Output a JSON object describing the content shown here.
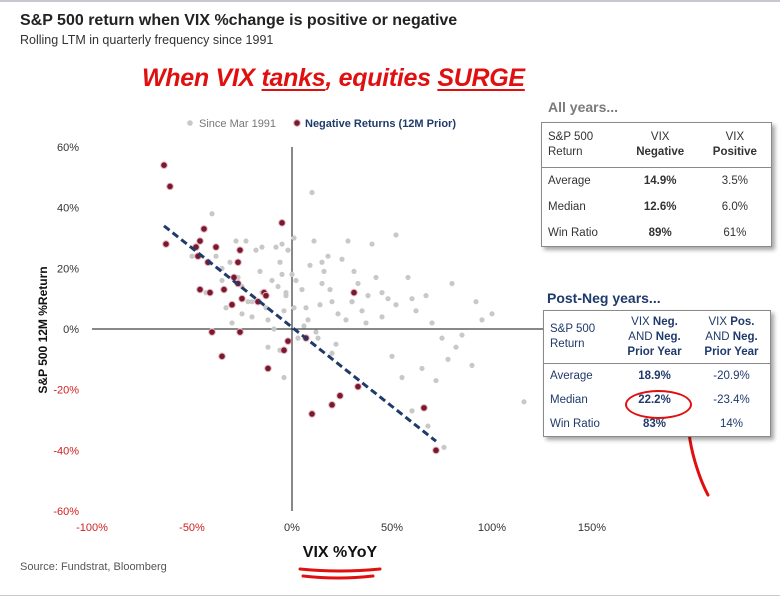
{
  "header": {
    "title": "S&P 500 return when VIX %change is positive or negative",
    "subtitle": "Rolling LTM in quarterly frequency since 1991",
    "headline_parts": [
      "When VIX ",
      "tanks",
      ", equities ",
      "SURGE"
    ]
  },
  "source": "Source: Fundstrat, Bloomberg",
  "colors": {
    "accent_red": "#e01010",
    "navy": "#1f3a6b",
    "gray_points": "#c8c8c8",
    "maroon_points": "#7a1830",
    "negative_tick_red": "#d02020"
  },
  "chart_data": {
    "type": "scatter",
    "xlabel": "VIX %YoY",
    "ylabel": "S&P 500 12M %Return",
    "xlim": [
      -100,
      150
    ],
    "ylim": [
      -60,
      60
    ],
    "x_ticks": [
      "-100%",
      "-50%",
      "0%",
      "50%",
      "100%",
      "150%"
    ],
    "y_ticks": [
      "60%",
      "40%",
      "20%",
      "0%",
      "-20%",
      "-40%",
      "-60%"
    ],
    "grid": false,
    "legend": "top-center",
    "series": [
      {
        "name": "Since Mar 1991",
        "color": "#c8c8c8",
        "points": [
          [
            -40,
            38
          ],
          [
            -50,
            24
          ],
          [
            -43,
            12
          ],
          [
            -38,
            24
          ],
          [
            -35,
            16
          ],
          [
            -33,
            7
          ],
          [
            -31,
            22
          ],
          [
            -27,
            17
          ],
          [
            -25,
            14
          ],
          [
            -23,
            29
          ],
          [
            -22,
            9
          ],
          [
            -20,
            4
          ],
          [
            -18,
            26
          ],
          [
            -16,
            19
          ],
          [
            -15,
            12
          ],
          [
            -13,
            7
          ],
          [
            -12,
            3
          ],
          [
            -10,
            16
          ],
          [
            -8,
            27
          ],
          [
            -7,
            14
          ],
          [
            -6,
            22
          ],
          [
            -5,
            28
          ],
          [
            -4,
            6
          ],
          [
            -3,
            11
          ],
          [
            -2,
            26
          ],
          [
            0,
            18
          ],
          [
            1,
            7
          ],
          [
            2,
            16
          ],
          [
            5,
            13
          ],
          [
            6,
            1
          ],
          [
            7,
            7
          ],
          [
            8,
            3
          ],
          [
            9,
            21
          ],
          [
            10,
            45
          ],
          [
            11,
            29
          ],
          [
            12,
            -1
          ],
          [
            13,
            -3
          ],
          [
            14,
            8
          ],
          [
            15,
            15
          ],
          [
            16,
            19
          ],
          [
            18,
            24
          ],
          [
            19,
            13
          ],
          [
            20,
            9
          ],
          [
            22,
            -5
          ],
          [
            23,
            5
          ],
          [
            25,
            23
          ],
          [
            27,
            3
          ],
          [
            28,
            29
          ],
          [
            30,
            9
          ],
          [
            31,
            19
          ],
          [
            33,
            15
          ],
          [
            35,
            6
          ],
          [
            37,
            2
          ],
          [
            40,
            28
          ],
          [
            42,
            17
          ],
          [
            45,
            12
          ],
          [
            48,
            10
          ],
          [
            50,
            -9
          ],
          [
            52,
            8
          ],
          [
            55,
            -16
          ],
          [
            58,
            17
          ],
          [
            60,
            10
          ],
          [
            62,
            6
          ],
          [
            65,
            -13
          ],
          [
            67,
            11
          ],
          [
            70,
            2
          ],
          [
            72,
            -17
          ],
          [
            75,
            -3
          ],
          [
            78,
            -10
          ],
          [
            80,
            15
          ],
          [
            82,
            -6
          ],
          [
            85,
            -2
          ],
          [
            90,
            -12
          ],
          [
            92,
            9
          ],
          [
            95,
            3
          ],
          [
            100,
            5
          ],
          [
            -9,
            0
          ],
          [
            -4,
            -16
          ],
          [
            -12,
            -6
          ],
          [
            -6,
            -7
          ],
          [
            3,
            -3
          ],
          [
            1,
            30
          ],
          [
            -3,
            12
          ],
          [
            52,
            31
          ],
          [
            -30,
            2
          ],
          [
            -35,
            20
          ],
          [
            -28,
            29
          ],
          [
            -15,
            27
          ],
          [
            -5,
            18
          ],
          [
            -25,
            5
          ],
          [
            -20,
            9
          ],
          [
            20,
            -8
          ],
          [
            15,
            22
          ],
          [
            60,
            -27
          ],
          [
            68,
            -32
          ],
          [
            76,
            -39
          ],
          [
            116,
            -24
          ],
          [
            45,
            4
          ],
          [
            30,
            9
          ],
          [
            38,
            11
          ]
        ]
      },
      {
        "name": "Negative Returns (12M Prior)",
        "color": "#7a1830",
        "points": [
          [
            -64,
            54
          ],
          [
            -61,
            47
          ],
          [
            -63,
            28
          ],
          [
            -48,
            27
          ],
          [
            -46,
            29
          ],
          [
            -44,
            33
          ],
          [
            -42,
            22
          ],
          [
            -47,
            24
          ],
          [
            -38,
            27
          ],
          [
            -34,
            13
          ],
          [
            -29,
            17
          ],
          [
            -27,
            22
          ],
          [
            -26,
            26
          ],
          [
            -25,
            10
          ],
          [
            -17,
            9
          ],
          [
            -14,
            12
          ],
          [
            -13,
            11
          ],
          [
            -5,
            35
          ],
          [
            -46,
            13
          ],
          [
            -41,
            12
          ],
          [
            -40,
            -1
          ],
          [
            -35,
            -9
          ],
          [
            -26,
            -1
          ],
          [
            -12,
            -13
          ],
          [
            -4,
            -7
          ],
          [
            -2,
            -4
          ],
          [
            7,
            -3
          ],
          [
            10,
            -28
          ],
          [
            20,
            -25
          ],
          [
            24,
            -22
          ],
          [
            31,
            12
          ],
          [
            33,
            -19
          ],
          [
            66,
            -26
          ],
          [
            72,
            -40
          ],
          [
            -27,
            15
          ],
          [
            -30,
            8
          ]
        ]
      }
    ],
    "trendline": {
      "start": [
        -64,
        34
      ],
      "end": [
        72,
        -37
      ],
      "style": "dashed",
      "color": "#1f3a6b"
    }
  },
  "tables": {
    "all_years": {
      "title": "All years...",
      "header": {
        "c0": [
          "S&P 500",
          "Return"
        ],
        "c1": [
          "VIX",
          "Negative"
        ],
        "c2": [
          "VIX",
          "Positive"
        ]
      },
      "rows": [
        {
          "label": "Average",
          "neg": "14.9%",
          "pos": "3.5%"
        },
        {
          "label": "Median",
          "neg": "12.6%",
          "pos": "6.0%"
        },
        {
          "label": "Win Ratio",
          "neg": "89%",
          "pos": "61%"
        }
      ]
    },
    "post_neg": {
      "title": "Post-Neg years...",
      "header": {
        "c0": [
          "S&P 500",
          "Return"
        ],
        "c1a": [
          "VIX",
          "Neg."
        ],
        "c1b": [
          "AND",
          "Neg."
        ],
        "c1c": "Prior Year",
        "c2a": [
          "VIX",
          "Pos."
        ],
        "c2b": [
          "AND",
          "Neg."
        ],
        "c2c": "Prior Year"
      },
      "rows": [
        {
          "label": "Average",
          "neg": "18.9%",
          "pos": "-20.9%"
        },
        {
          "label": "Median",
          "neg": "22.2%",
          "pos": "-23.4%"
        },
        {
          "label": "Win Ratio",
          "neg": "83%",
          "pos": "14%"
        }
      ]
    }
  }
}
